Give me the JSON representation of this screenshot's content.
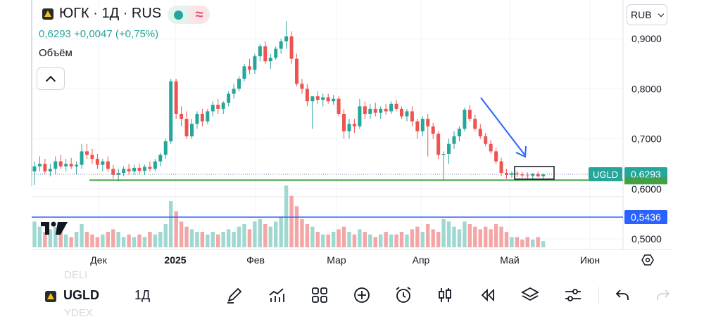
{
  "header": {
    "title": "ЮГК · 1Д · RUS",
    "price_line": "0,6293  +0,0047 (+0,75%)",
    "volume_label": "Объём"
  },
  "currency": "RUB",
  "colors": {
    "up": "#26a69a",
    "down": "#ef5350",
    "accent": "#2962ff",
    "support": "#43a047",
    "price_label": "#26a69a"
  },
  "price_axis": {
    "ticks": [
      "0,9000",
      "0,8000",
      "0,7000",
      "0,6000",
      "0,5000"
    ]
  },
  "price_labels": {
    "symbol": "UGLD",
    "last": "0,6293",
    "hline": "0,5436"
  },
  "toolbar": {
    "symbol": "UGLD",
    "interval": "1Д",
    "ghost_above": "DELI",
    "ghost_below": "YDEX",
    "icons": [
      "draw-icon",
      "indicators-icon",
      "layout-icon",
      "add-icon",
      "alert-icon",
      "candles-icon",
      "replay-icon",
      "layers-icon",
      "settings-icon",
      "undo-icon",
      "redo-icon"
    ]
  },
  "chart_data": {
    "type": "candlestick",
    "x_labels": [
      "Дек",
      "2025",
      "Фев",
      "Мар",
      "Апр",
      "Май",
      "Июн"
    ],
    "y_range": [
      0.49,
      0.94
    ],
    "last_price": 0.6293,
    "support_level": 0.6175,
    "horizontal_line": 0.5436,
    "candles": [
      [
        0.635,
        0.655,
        0.608,
        0.645
      ],
      [
        0.645,
        0.665,
        0.635,
        0.65
      ],
      [
        0.65,
        0.66,
        0.63,
        0.635
      ],
      [
        0.635,
        0.65,
        0.625,
        0.64
      ],
      [
        0.64,
        0.665,
        0.63,
        0.655
      ],
      [
        0.655,
        0.668,
        0.64,
        0.645
      ],
      [
        0.645,
        0.66,
        0.635,
        0.65
      ],
      [
        0.65,
        0.662,
        0.64,
        0.645
      ],
      [
        0.645,
        0.655,
        0.63,
        0.648
      ],
      [
        0.648,
        0.69,
        0.64,
        0.675
      ],
      [
        0.675,
        0.69,
        0.66,
        0.668
      ],
      [
        0.668,
        0.68,
        0.65,
        0.66
      ],
      [
        0.66,
        0.67,
        0.64,
        0.648
      ],
      [
        0.648,
        0.66,
        0.635,
        0.655
      ],
      [
        0.655,
        0.665,
        0.635,
        0.64
      ],
      [
        0.64,
        0.648,
        0.62,
        0.628
      ],
      [
        0.628,
        0.64,
        0.615,
        0.632
      ],
      [
        0.632,
        0.645,
        0.625,
        0.64
      ],
      [
        0.64,
        0.65,
        0.628,
        0.635
      ],
      [
        0.635,
        0.648,
        0.628,
        0.642
      ],
      [
        0.642,
        0.65,
        0.63,
        0.636
      ],
      [
        0.636,
        0.648,
        0.628,
        0.644
      ],
      [
        0.644,
        0.655,
        0.635,
        0.64
      ],
      [
        0.64,
        0.66,
        0.635,
        0.655
      ],
      [
        0.655,
        0.672,
        0.645,
        0.668
      ],
      [
        0.668,
        0.7,
        0.66,
        0.695
      ],
      [
        0.695,
        0.82,
        0.69,
        0.815
      ],
      [
        0.815,
        0.82,
        0.74,
        0.75
      ],
      [
        0.75,
        0.765,
        0.725,
        0.74
      ],
      [
        0.74,
        0.755,
        0.7,
        0.705
      ],
      [
        0.705,
        0.74,
        0.7,
        0.73
      ],
      [
        0.73,
        0.755,
        0.72,
        0.75
      ],
      [
        0.75,
        0.76,
        0.725,
        0.735
      ],
      [
        0.735,
        0.76,
        0.73,
        0.755
      ],
      [
        0.755,
        0.775,
        0.745,
        0.768
      ],
      [
        0.768,
        0.78,
        0.75,
        0.76
      ],
      [
        0.76,
        0.775,
        0.75,
        0.772
      ],
      [
        0.772,
        0.795,
        0.765,
        0.79
      ],
      [
        0.79,
        0.81,
        0.78,
        0.8
      ],
      [
        0.8,
        0.825,
        0.795,
        0.82
      ],
      [
        0.82,
        0.85,
        0.815,
        0.845
      ],
      [
        0.845,
        0.86,
        0.83,
        0.838
      ],
      [
        0.838,
        0.87,
        0.83,
        0.865
      ],
      [
        0.865,
        0.89,
        0.855,
        0.885
      ],
      [
        0.885,
        0.895,
        0.85,
        0.855
      ],
      [
        0.855,
        0.87,
        0.84,
        0.862
      ],
      [
        0.862,
        0.885,
        0.858,
        0.88
      ],
      [
        0.88,
        0.9,
        0.87,
        0.895
      ],
      [
        0.895,
        0.935,
        0.88,
        0.905
      ],
      [
        0.905,
        0.915,
        0.85,
        0.86
      ],
      [
        0.86,
        0.87,
        0.805,
        0.81
      ],
      [
        0.81,
        0.82,
        0.79,
        0.8
      ],
      [
        0.8,
        0.81,
        0.765,
        0.775
      ],
      [
        0.775,
        0.785,
        0.72,
        0.785
      ],
      [
        0.785,
        0.795,
        0.77,
        0.778
      ],
      [
        0.778,
        0.79,
        0.765,
        0.783
      ],
      [
        0.783,
        0.79,
        0.77,
        0.775
      ],
      [
        0.775,
        0.788,
        0.768,
        0.78
      ],
      [
        0.78,
        0.785,
        0.745,
        0.75
      ],
      [
        0.75,
        0.76,
        0.7,
        0.715
      ],
      [
        0.715,
        0.74,
        0.7,
        0.73
      ],
      [
        0.73,
        0.74,
        0.712,
        0.725
      ],
      [
        0.725,
        0.78,
        0.72,
        0.765
      ],
      [
        0.765,
        0.775,
        0.74,
        0.75
      ],
      [
        0.75,
        0.77,
        0.74,
        0.76
      ],
      [
        0.76,
        0.772,
        0.745,
        0.752
      ],
      [
        0.752,
        0.765,
        0.74,
        0.76
      ],
      [
        0.76,
        0.77,
        0.748,
        0.755
      ],
      [
        0.755,
        0.775,
        0.75,
        0.77
      ],
      [
        0.77,
        0.778,
        0.755,
        0.76
      ],
      [
        0.76,
        0.765,
        0.74,
        0.745
      ],
      [
        0.745,
        0.76,
        0.735,
        0.755
      ],
      [
        0.755,
        0.765,
        0.725,
        0.735
      ],
      [
        0.735,
        0.74,
        0.7,
        0.715
      ],
      [
        0.715,
        0.745,
        0.705,
        0.74
      ],
      [
        0.74,
        0.75,
        0.665,
        0.725
      ],
      [
        0.725,
        0.732,
        0.7,
        0.71
      ],
      [
        0.71,
        0.715,
        0.66,
        0.668
      ],
      [
        0.668,
        0.675,
        0.618,
        0.67
      ],
      [
        0.67,
        0.7,
        0.65,
        0.69
      ],
      [
        0.69,
        0.715,
        0.68,
        0.705
      ],
      [
        0.705,
        0.725,
        0.695,
        0.72
      ],
      [
        0.72,
        0.762,
        0.715,
        0.758
      ],
      [
        0.758,
        0.768,
        0.735,
        0.74
      ],
      [
        0.74,
        0.748,
        0.715,
        0.72
      ],
      [
        0.72,
        0.73,
        0.7,
        0.705
      ],
      [
        0.705,
        0.712,
        0.685,
        0.69
      ],
      [
        0.69,
        0.698,
        0.67,
        0.675
      ],
      [
        0.675,
        0.682,
        0.65,
        0.655
      ],
      [
        0.655,
        0.662,
        0.625,
        0.632
      ],
      [
        0.632,
        0.64,
        0.62,
        0.628
      ],
      [
        0.628,
        0.635,
        0.622,
        0.631
      ],
      [
        0.631,
        0.636,
        0.624,
        0.629
      ],
      [
        0.629,
        0.634,
        0.622,
        0.627
      ],
      [
        0.627,
        0.633,
        0.621,
        0.626
      ],
      [
        0.626,
        0.632,
        0.62,
        0.63
      ],
      [
        0.63,
        0.634,
        0.623,
        0.625
      ],
      [
        0.625,
        0.631,
        0.62,
        0.629
      ]
    ],
    "volumes": [
      0.5,
      0.4,
      0.3,
      0.35,
      0.4,
      0.3,
      0.25,
      0.2,
      0.3,
      0.45,
      0.3,
      0.25,
      0.2,
      0.25,
      0.3,
      0.35,
      0.3,
      0.2,
      0.25,
      0.2,
      0.25,
      0.2,
      0.3,
      0.25,
      0.3,
      0.45,
      0.9,
      0.7,
      0.5,
      0.4,
      0.35,
      0.3,
      0.3,
      0.25,
      0.3,
      0.25,
      0.3,
      0.35,
      0.3,
      0.4,
      0.45,
      0.35,
      0.5,
      0.55,
      0.45,
      0.4,
      0.5,
      0.6,
      1.2,
      1.0,
      0.8,
      0.55,
      0.45,
      0.4,
      0.3,
      0.25,
      0.25,
      0.3,
      0.35,
      0.4,
      0.3,
      0.25,
      0.35,
      0.3,
      0.25,
      0.2,
      0.25,
      0.3,
      0.25,
      0.25,
      0.3,
      0.25,
      0.35,
      0.4,
      0.3,
      0.45,
      0.35,
      0.3,
      0.55,
      0.5,
      0.4,
      0.35,
      0.5,
      0.45,
      0.4,
      0.35,
      0.4,
      0.35,
      0.45,
      0.4,
      0.3,
      0.2,
      0.2,
      0.15,
      0.2,
      0.15,
      0.2,
      0.12
    ]
  }
}
